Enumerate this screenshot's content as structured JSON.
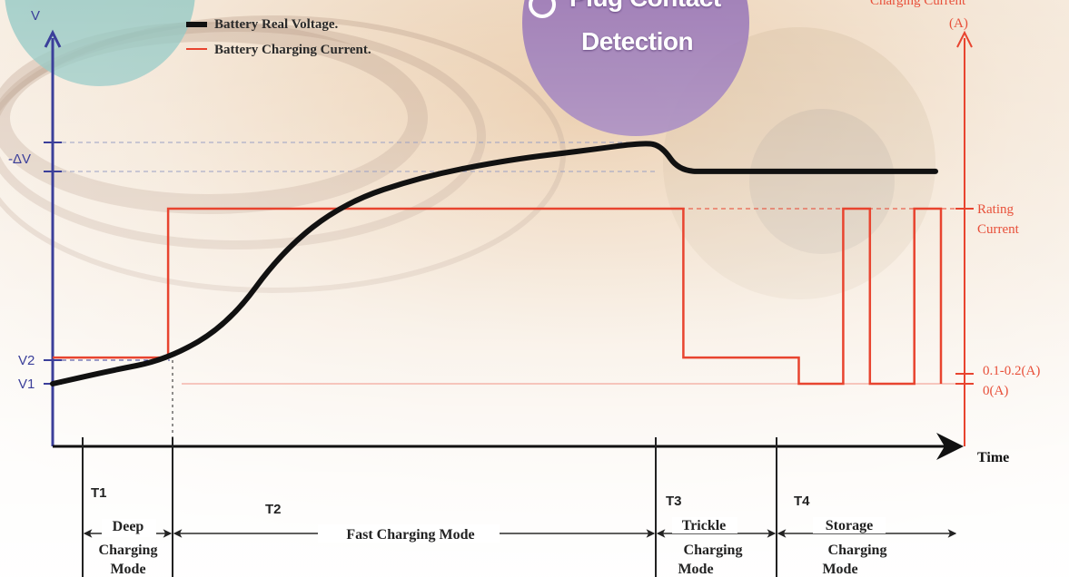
{
  "legend": {
    "voltage": "Battery Real Voltage.",
    "current": "Battery Charging Current."
  },
  "bubble": {
    "line1": "Plug Contact",
    "line2": "Detection"
  },
  "axes": {
    "left_unit": "V",
    "right_title": "Charging Current",
    "right_unit": "(A)",
    "x_label": "Time",
    "left_ticks": [
      "-ΔV",
      "V2",
      "V1"
    ],
    "right_ticks": {
      "rating_line1": "Rating",
      "rating_line2": "Current",
      "trickle": "0.1-0.2(A)",
      "zero": "0(A)"
    }
  },
  "phases": [
    {
      "id": "T1",
      "lines": [
        "Deep",
        "Charging",
        "Mode"
      ]
    },
    {
      "id": "T2",
      "lines": [
        "Fast Charging Mode"
      ]
    },
    {
      "id": "T3",
      "lines": [
        "Trickle",
        "Charging",
        "Mode"
      ]
    },
    {
      "id": "T4",
      "lines": [
        "Storage",
        "Charging",
        "Mode"
      ]
    }
  ],
  "colors": {
    "voltage": "#111111",
    "current": "#e8442f",
    "left_axis": "#3b3f9a",
    "right_axis": "#e8442f",
    "time_axis": "#111111"
  },
  "chart_data": {
    "type": "line",
    "x_phases": [
      "T1",
      "T2",
      "T3",
      "T4"
    ],
    "series": [
      {
        "name": "Battery Real Voltage.",
        "points": [
          [
            0.0,
            0.0
          ],
          [
            0.06,
            0.05
          ],
          [
            0.13,
            0.1
          ],
          [
            0.2,
            0.25
          ],
          [
            0.26,
            0.55
          ],
          [
            0.33,
            0.75
          ],
          [
            0.42,
            0.86
          ],
          [
            0.52,
            0.93
          ],
          [
            0.6,
            0.965
          ],
          [
            0.67,
            1.0
          ],
          [
            0.69,
            0.985
          ],
          [
            0.71,
            0.88
          ],
          [
            0.75,
            0.88
          ],
          [
            1.0,
            0.88
          ]
        ]
      },
      {
        "name": "Battery Charging Current.",
        "levels": {
          "zero": 0,
          "trickle": 0.15,
          "rating": 1
        },
        "points": [
          [
            0.0,
            0.15
          ],
          [
            0.13,
            0.15
          ],
          [
            0.13,
            1.0
          ],
          [
            0.71,
            1.0
          ],
          [
            0.71,
            0.15
          ],
          [
            0.84,
            0.15
          ],
          [
            0.84,
            0.0
          ],
          [
            0.89,
            0.0
          ],
          [
            0.89,
            1.0
          ],
          [
            0.92,
            1.0
          ],
          [
            0.92,
            0.0
          ],
          [
            0.97,
            0.0
          ],
          [
            0.97,
            1.0
          ],
          [
            1.0,
            1.0
          ],
          [
            1.0,
            0.0
          ]
        ]
      }
    ]
  }
}
